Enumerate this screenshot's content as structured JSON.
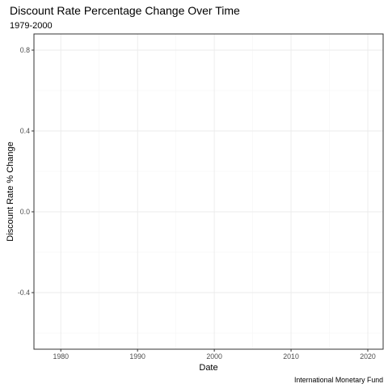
{
  "chart_data": {
    "type": "line",
    "title": "Discount Rate Percentage Change Over Time",
    "subtitle": "1979-2000",
    "xlabel": "Date",
    "ylabel": "Discount Rate % Change",
    "caption": "International Monetary Fund",
    "xlim": [
      1976.5,
      2022
    ],
    "ylim": [
      -0.68,
      0.88
    ],
    "x_ticks": [
      1980,
      1990,
      2000,
      2010,
      2020
    ],
    "x_tick_labels": [
      "1980",
      "1990",
      "2000",
      "2010",
      "2020"
    ],
    "x_minor": [
      1985,
      1995,
      2005,
      2015
    ],
    "y_ticks": [
      -0.4,
      0.0,
      0.4,
      0.8
    ],
    "y_tick_labels": [
      "-0.4",
      "0.0",
      "0.4",
      "0.8"
    ],
    "y_minor": [
      -0.6,
      -0.2,
      0.2,
      0.6
    ],
    "grid": true,
    "series": []
  }
}
